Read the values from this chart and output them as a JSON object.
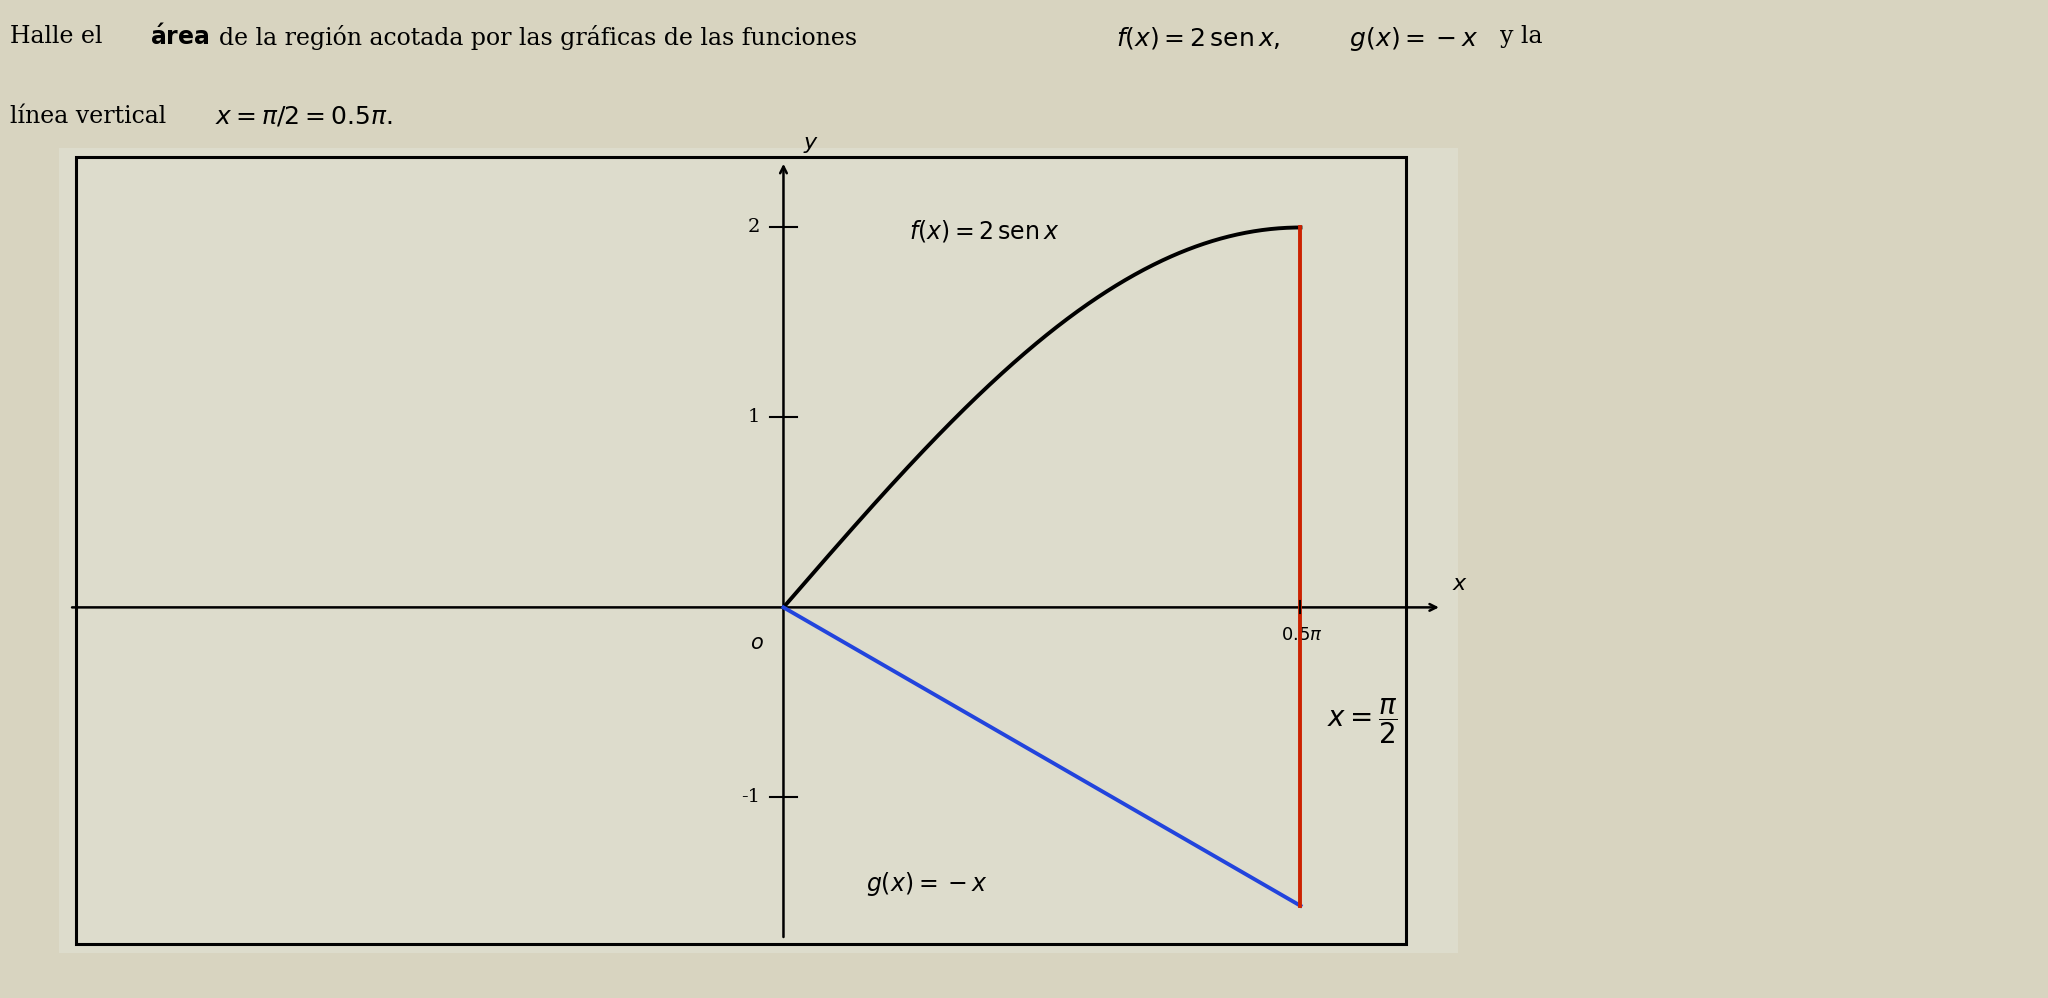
{
  "f_label": "$f(x) = 2\\,\\mathrm{sen}\\,x$",
  "g_label": "$g(x) = -x$",
  "vline_label": "$x = \\dfrac{\\pi}{2}$",
  "x_tick_label": "$0.5\\pi$",
  "xmin": -2.2,
  "xmax": 2.05,
  "ymin": -1.82,
  "ymax": 2.42,
  "vline_x": 1.5707963267948966,
  "f_color": "#000000",
  "g_color": "#2244dd",
  "vline_color": "#cc2200",
  "axis_color": "#000000",
  "bg_color": "#d8d4c0",
  "plot_bg_color": "#dddccc",
  "ytick_vals": [
    1,
    2,
    -1
  ],
  "font_size_title": 17,
  "font_size_labels": 15,
  "font_size_ticks": 14,
  "font_size_vline_label": 17,
  "title_line1": "Halle el área de la región acotada por las gráficas de las funciones $f(x) = 2\\,\\mathrm{sen}\\,x$,  $g(x) = -x$  y la",
  "title_line2": "línea vertical  $x = \\pi/2 = 0.5\\pi$."
}
